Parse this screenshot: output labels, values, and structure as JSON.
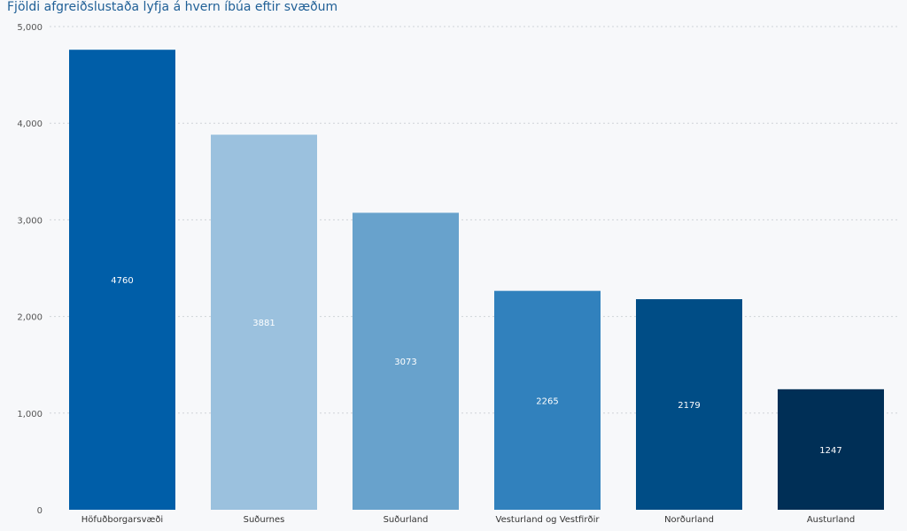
{
  "chart_data": {
    "type": "bar",
    "title": "Fjöldi afgreiðslustaða lyfja á hvern íbúa eftir svæðum",
    "xlabel": "",
    "ylabel": "",
    "categories": [
      "Höfuðborgarsvæði",
      "Suðurnes",
      "Suðurland",
      "Vesturland og Vestfirðir",
      "Norðurland",
      "Austurland"
    ],
    "values": [
      4760,
      3881,
      3073,
      2265,
      2179,
      1247
    ],
    "data_labels": [
      "4760",
      "3881",
      "3073",
      "2265",
      "2179",
      "1247"
    ],
    "ylim": [
      0,
      5000
    ],
    "yticks": [
      0,
      1000,
      2000,
      3000,
      4000,
      5000
    ],
    "ytick_labels": [
      "0",
      "1,000",
      "2,000",
      "3,000",
      "4,000",
      "5,000"
    ],
    "bar_colors": [
      "#005ea8",
      "#9bc1de",
      "#68a2cc",
      "#3181bd",
      "#004d86",
      "#002f56"
    ],
    "grid": true,
    "legend": "none"
  }
}
